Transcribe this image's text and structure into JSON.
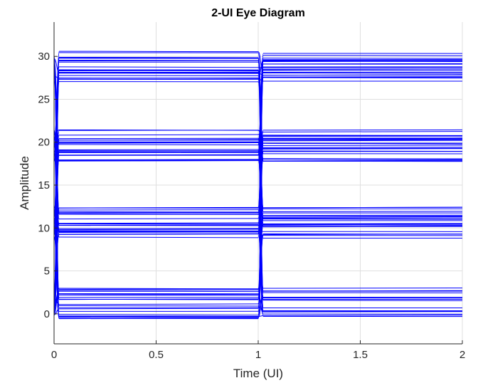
{
  "chart_data": {
    "type": "line",
    "title": "2-UI Eye Diagram",
    "xlabel": "Time (UI)",
    "ylabel": "Amplitude",
    "xlim": [
      0,
      2
    ],
    "ylim": [
      -3.5,
      34
    ],
    "xticks": [
      0,
      0.5,
      1,
      1.5,
      2
    ],
    "xtick_labels": [
      "0",
      "0.5",
      "1",
      "1.5",
      "2"
    ],
    "yticks": [
      0,
      5,
      10,
      15,
      20,
      25,
      30
    ],
    "ytick_labels": [
      "0",
      "5",
      "10",
      "15",
      "20",
      "25",
      "30"
    ],
    "grid": true,
    "line_color": "#0000ff",
    "symbol_levels": [
      0,
      10,
      20,
      30
    ],
    "level_spread": [
      [
        -0.6,
        3.0
      ],
      [
        8.8,
        12.4
      ],
      [
        17.7,
        21.5
      ],
      [
        27.0,
        30.6
      ]
    ],
    "transition_times": [
      0,
      1
    ],
    "transition_width": 0.025,
    "traces_per_level": 22
  }
}
